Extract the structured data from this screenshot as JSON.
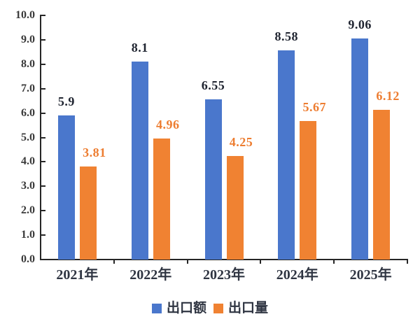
{
  "chart_data": {
    "type": "bar",
    "categories": [
      "2021年",
      "2022年",
      "2023年",
      "2024年",
      "2025年"
    ],
    "series": [
      {
        "name": "出口额",
        "color": "#4A77CC",
        "label_color": "#1F2430",
        "values": [
          5.9,
          8.1,
          6.55,
          8.58,
          9.06
        ],
        "value_labels": [
          "5.9",
          "8.1",
          "6.55",
          "8.58",
          "9.06"
        ]
      },
      {
        "name": "出口量",
        "color": "#F08232",
        "label_color": "#ED7D31",
        "values": [
          3.81,
          4.96,
          4.25,
          5.67,
          6.12
        ],
        "value_labels": [
          "3.81",
          "4.96",
          "4.25",
          "5.67",
          "6.12"
        ]
      }
    ],
    "ylim": [
      0,
      10
    ],
    "ytick_labels": [
      "0.0",
      "1.0",
      "2.0",
      "3.0",
      "4.0",
      "5.0",
      "6.0",
      "7.0",
      "8.0",
      "9.0",
      "10.0"
    ],
    "grid": false,
    "legend_position": "bottom",
    "axis_color": "#262626",
    "ytick_label_color": "#3A3A3A",
    "xtick_label_color": "#2F3542"
  }
}
